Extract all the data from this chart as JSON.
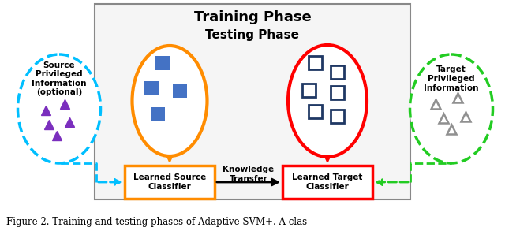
{
  "title_training": "Training Phase",
  "title_testing": "Testing Phase",
  "caption": "Figure 2. Training and testing phases of Adaptive SVM+. A clas-",
  "source_priv_title": "Source\nPrivileged\nInformation\n(optional)",
  "target_priv_title": "Target\nPrivileged\nInformation",
  "source_box_label": "Learned Source\nClassifier",
  "target_box_label": "Learned Target\nClassifier",
  "arrow_label": "Knowledge\nTransfer",
  "bg_color": "#ffffff",
  "outer_rect_color": "#888888",
  "orange_ellipse_color": "#FF8C00",
  "red_ellipse_color": "#FF0000",
  "cyan_ellipse_color": "#00BFFF",
  "green_ellipse_color": "#22CC22",
  "purple_triangle_color": "#7B2FBE",
  "blue_square_color": "#4472C4",
  "navy_square_outline": "#1F3864",
  "gray_triangle_color": "#909090",
  "orange_box_color": "#FF8C00",
  "red_box_color": "#FF0000"
}
